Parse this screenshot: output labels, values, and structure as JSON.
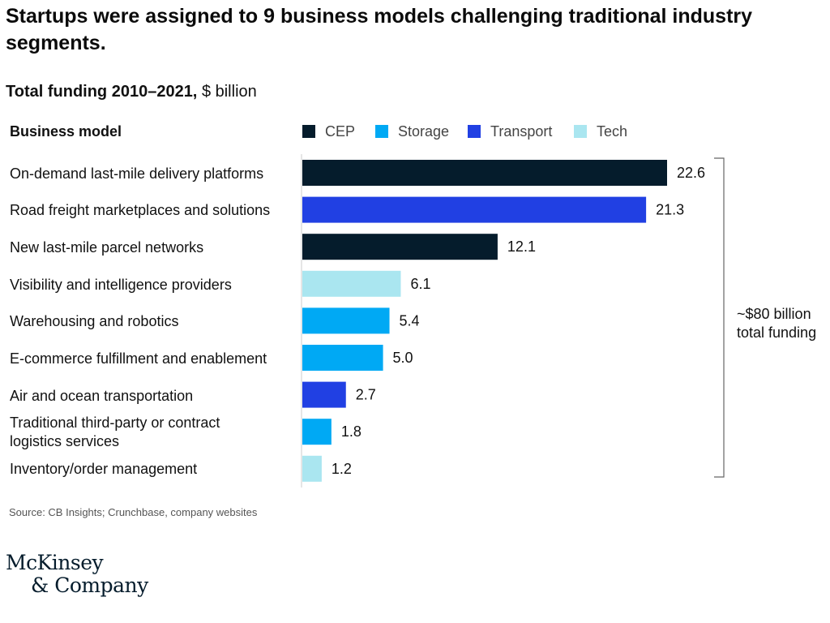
{
  "title": "Startups were assigned to 9 business models challenging traditional industry segments.",
  "subtitle": {
    "bold": "Total funding 2010–2021,",
    "unit": "$ billion"
  },
  "column_header": "Business model",
  "legend": [
    {
      "key": "CEP",
      "label": "CEP",
      "color": "#051c2c"
    },
    {
      "key": "Storage",
      "label": "Storage",
      "color": "#00a9f4"
    },
    {
      "key": "Transport",
      "label": "Transport",
      "color": "#2140e3"
    },
    {
      "key": "Tech",
      "label": "Tech",
      "color": "#aae6f0"
    }
  ],
  "chart_data": {
    "type": "bar",
    "orientation": "horizontal",
    "categories": [
      "On-demand last-mile delivery platforms",
      "Road freight marketplaces and solutions",
      "New last-mile parcel networks",
      "Visibility and intelligence providers",
      "Warehousing and robotics",
      "E-commerce fulfillment and enablement",
      "Air and ocean transportation",
      "Traditional third-party or contract logistics services",
      "Inventory/order management"
    ],
    "values": [
      22.6,
      21.3,
      12.1,
      6.1,
      5.4,
      5.0,
      2.7,
      1.8,
      1.2
    ],
    "value_labels": [
      "22.6",
      "21.3",
      "12.1",
      "6.1",
      "5.4",
      "5.0",
      "2.7",
      "1.8",
      "1.2"
    ],
    "segments": [
      "CEP",
      "Transport",
      "CEP",
      "Tech",
      "Storage",
      "Storage",
      "Transport",
      "Storage",
      "Tech"
    ],
    "annotation": "~$80 billion total funding",
    "legend_position": "top"
  },
  "annotation_lines": [
    "~$80 billion",
    "total funding"
  ],
  "source": "Source: CB Insights; Crunchbase, company websites",
  "logo": {
    "line1": "McKinsey",
    "line2": "& Company"
  }
}
